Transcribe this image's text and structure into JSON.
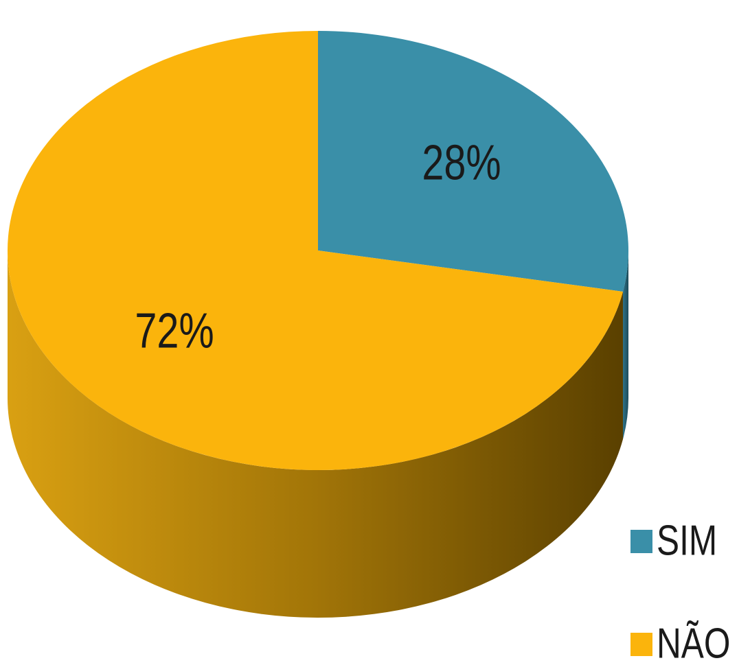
{
  "chart_data": {
    "type": "pie",
    "categories": [
      "SIM",
      "NÃO"
    ],
    "values": [
      28,
      72
    ],
    "value_labels": [
      "28%",
      "72%"
    ],
    "colors": [
      "#3a8fa8",
      "#fbb40c"
    ],
    "legend": "bottom-right"
  }
}
